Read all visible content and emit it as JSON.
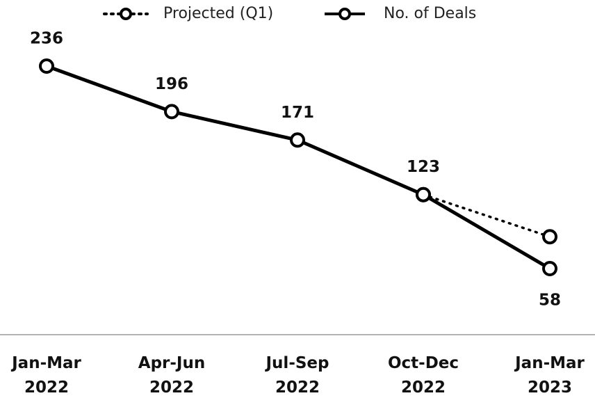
{
  "chart_data": {
    "type": "line",
    "categories": [
      "Jan-Mar 2022",
      "Apr-Jun 2022",
      "Jul-Sep 2022",
      "Oct-Dec 2022",
      "Jan-Mar 2023"
    ],
    "series": [
      {
        "name": "Projected (Q1)",
        "color": "#000000",
        "style": "dotted",
        "values": [
          null,
          null,
          null,
          123,
          86
        ]
      },
      {
        "name": "No. of Deals",
        "color": "#000000",
        "style": "solid",
        "values": [
          236,
          196,
          171,
          123,
          58
        ]
      }
    ],
    "legend": "top"
  }
}
